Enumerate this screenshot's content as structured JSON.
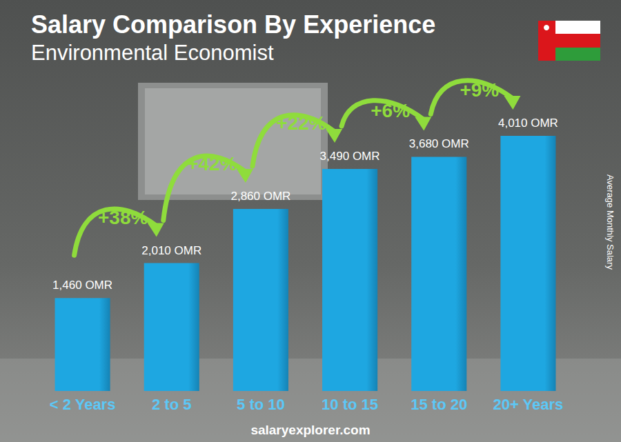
{
  "chart_data": {
    "type": "bar",
    "title": "Salary Comparison By Experience",
    "subtitle": "Environmental Economist",
    "y_label": "Average Monthly Salary",
    "source": "salaryexplorer.com",
    "categories": [
      "< 2 Years",
      "2 to 5",
      "5 to 10",
      "10 to 15",
      "15 to 20",
      "20+ Years"
    ],
    "values": [
      1460,
      2010,
      2860,
      3490,
      3680,
      4010
    ],
    "value_labels": [
      "1,460 OMR",
      "2,010 OMR",
      "2,860 OMR",
      "3,490 OMR",
      "3,680 OMR",
      "4,010 OMR"
    ],
    "annotations": [
      "+38%",
      "+42%",
      "+22%",
      "+6%",
      "+9%"
    ],
    "color": "#1ea7e1",
    "ylim": [
      0,
      4400
    ],
    "grid": false,
    "tick_labels": "x",
    "data_labels": true
  }
}
